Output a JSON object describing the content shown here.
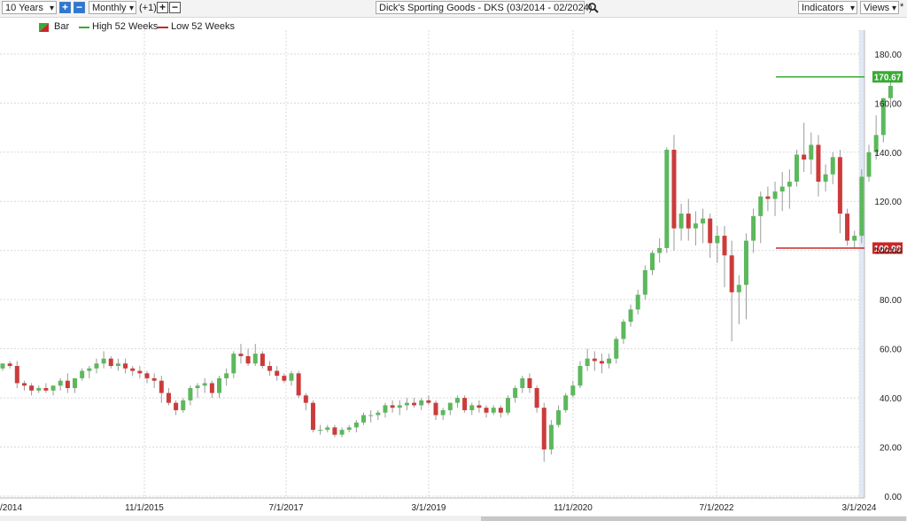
{
  "toolbar": {
    "period": "10 Years",
    "interval": "Monthly",
    "offset": "(+1)",
    "symbol_title": "Dick's Sporting Goods - DKS (03/2014 - 02/2024)",
    "indicators": "Indicators",
    "views": "Views",
    "plus_icon": "plus-icon",
    "minus_icon": "minus-icon",
    "search_icon": "magnifier-icon",
    "asterisk": "*"
  },
  "legend": {
    "bar": "Bar",
    "high": "High 52 Weeks",
    "low": "Low 52 Weeks"
  },
  "colors": {
    "up": "#5cb85c",
    "down": "#cc3b3b",
    "high_line": "#3aaa35",
    "low_line": "#c82828",
    "grid": "#d9d9d9"
  },
  "chart_data": {
    "type": "candlestick",
    "title": "Dick's Sporting Goods - DKS (03/2014 - 02/2024)",
    "interval": "Monthly",
    "y_ticks": [
      "0.00",
      "20.00",
      "40.00",
      "60.00",
      "80.00",
      "100.00",
      "120.00",
      "140.00",
      "160.00",
      "180.00"
    ],
    "ylim": [
      0,
      190
    ],
    "x_ticks": [
      "/2014",
      "11/1/2015",
      "7/1/2017",
      "3/1/2019",
      "11/1/2020",
      "7/1/2022",
      "3/1/2024"
    ],
    "grid": true,
    "high_52_weeks": 170.67,
    "low_52_weeks": 100.98,
    "high_label": "170.67",
    "low_label": "100.98",
    "candles": [
      [
        52,
        54,
        51,
        54
      ],
      [
        54,
        55,
        52,
        53
      ],
      [
        53,
        55,
        44,
        46
      ],
      [
        46,
        47,
        43,
        45
      ],
      [
        45,
        46,
        41,
        43
      ],
      [
        43,
        45,
        42,
        44
      ],
      [
        44,
        46,
        42,
        43
      ],
      [
        43,
        45,
        41,
        45
      ],
      [
        45,
        48,
        43,
        47
      ],
      [
        47,
        50,
        42,
        44
      ],
      [
        44,
        48,
        42,
        48
      ],
      [
        48,
        52,
        47,
        51
      ],
      [
        51,
        53,
        48,
        52
      ],
      [
        52,
        56,
        50,
        54
      ],
      [
        54,
        59,
        52,
        56
      ],
      [
        56,
        57,
        52,
        53
      ],
      [
        53,
        56,
        51,
        54
      ],
      [
        54,
        56,
        50,
        52
      ],
      [
        52,
        53,
        49,
        51
      ],
      [
        51,
        53,
        48,
        50
      ],
      [
        50,
        51,
        46,
        48
      ],
      [
        48,
        50,
        44,
        47
      ],
      [
        47,
        49,
        38,
        42
      ],
      [
        42,
        44,
        37,
        38
      ],
      [
        38,
        39,
        33,
        35
      ],
      [
        35,
        40,
        34,
        39
      ],
      [
        39,
        45,
        37,
        44
      ],
      [
        44,
        46,
        40,
        45
      ],
      [
        45,
        48,
        42,
        46
      ],
      [
        46,
        47,
        40,
        42
      ],
      [
        42,
        49,
        40,
        48
      ],
      [
        48,
        52,
        45,
        50
      ],
      [
        50,
        59,
        48,
        58
      ],
      [
        58,
        62,
        54,
        57
      ],
      [
        57,
        60,
        53,
        54
      ],
      [
        54,
        62,
        53,
        58
      ],
      [
        58,
        59,
        52,
        53
      ],
      [
        53,
        55,
        49,
        51
      ],
      [
        51,
        53,
        47,
        49
      ],
      [
        49,
        50,
        46,
        47
      ],
      [
        47,
        51,
        45,
        50
      ],
      [
        50,
        51,
        40,
        41
      ],
      [
        41,
        42,
        35,
        38
      ],
      [
        38,
        39,
        26,
        27
      ],
      [
        27,
        29,
        25,
        27
      ],
      [
        27,
        29,
        26,
        28
      ],
      [
        28,
        29,
        24,
        25
      ],
      [
        25,
        28,
        24,
        27
      ],
      [
        27,
        29,
        26,
        28
      ],
      [
        28,
        31,
        26,
        30
      ],
      [
        30,
        34,
        29,
        33
      ],
      [
        33,
        35,
        30,
        33
      ],
      [
        33,
        35,
        31,
        34
      ],
      [
        34,
        38,
        32,
        37
      ],
      [
        37,
        39,
        34,
        36
      ],
      [
        36,
        39,
        33,
        37
      ],
      [
        37,
        40,
        35,
        38
      ],
      [
        38,
        40,
        36,
        37
      ],
      [
        37,
        40,
        35,
        39
      ],
      [
        39,
        41,
        37,
        38
      ],
      [
        38,
        39,
        31,
        33
      ],
      [
        33,
        36,
        31,
        35
      ],
      [
        35,
        38,
        33,
        38
      ],
      [
        38,
        41,
        36,
        40
      ],
      [
        40,
        41,
        34,
        35
      ],
      [
        35,
        38,
        33,
        37
      ],
      [
        37,
        39,
        34,
        36
      ],
      [
        36,
        37,
        32,
        34
      ],
      [
        34,
        37,
        33,
        36
      ],
      [
        36,
        37,
        32,
        34
      ],
      [
        34,
        41,
        33,
        40
      ],
      [
        40,
        45,
        38,
        44
      ],
      [
        44,
        49,
        42,
        48
      ],
      [
        48,
        50,
        42,
        44
      ],
      [
        44,
        45,
        34,
        36
      ],
      [
        36,
        38,
        14,
        19
      ],
      [
        19,
        31,
        17,
        29
      ],
      [
        29,
        37,
        28,
        35
      ],
      [
        35,
        42,
        34,
        41
      ],
      [
        41,
        47,
        40,
        45
      ],
      [
        45,
        55,
        44,
        53
      ],
      [
        53,
        60,
        51,
        56
      ],
      [
        56,
        59,
        51,
        55
      ],
      [
        55,
        58,
        50,
        54
      ],
      [
        54,
        58,
        52,
        56
      ],
      [
        56,
        65,
        54,
        64
      ],
      [
        64,
        72,
        62,
        71
      ],
      [
        71,
        78,
        69,
        76
      ],
      [
        76,
        84,
        74,
        82
      ],
      [
        82,
        94,
        80,
        92
      ],
      [
        92,
        100,
        90,
        99
      ],
      [
        99,
        105,
        95,
        101
      ],
      [
        101,
        142,
        99,
        141
      ],
      [
        141,
        147,
        100,
        109
      ],
      [
        109,
        119,
        104,
        115
      ],
      [
        115,
        121,
        104,
        109
      ],
      [
        109,
        116,
        102,
        111
      ],
      [
        111,
        117,
        103,
        113
      ],
      [
        113,
        115,
        97,
        103
      ],
      [
        103,
        110,
        95,
        106
      ],
      [
        106,
        110,
        85,
        98
      ],
      [
        98,
        104,
        63,
        83
      ],
      [
        83,
        90,
        70,
        86
      ],
      [
        86,
        107,
        72,
        104
      ],
      [
        104,
        117,
        99,
        114
      ],
      [
        114,
        124,
        103,
        122
      ],
      [
        122,
        126,
        116,
        121
      ],
      [
        121,
        128,
        114,
        124
      ],
      [
        124,
        132,
        116,
        126
      ],
      [
        126,
        133,
        117,
        128
      ],
      [
        128,
        141,
        126,
        139
      ],
      [
        139,
        152,
        132,
        137
      ],
      [
        137,
        148,
        131,
        143
      ],
      [
        143,
        147,
        122,
        128
      ],
      [
        128,
        135,
        124,
        131
      ],
      [
        131,
        140,
        127,
        138
      ],
      [
        138,
        141,
        107,
        115
      ],
      [
        115,
        117,
        102,
        104
      ],
      [
        104,
        108,
        101,
        106
      ],
      [
        106,
        133,
        103,
        130
      ],
      [
        130,
        143,
        128,
        140
      ],
      [
        140,
        155,
        137,
        147
      ],
      [
        147,
        162,
        144,
        162
      ],
      [
        162,
        171,
        158,
        167
      ]
    ]
  }
}
